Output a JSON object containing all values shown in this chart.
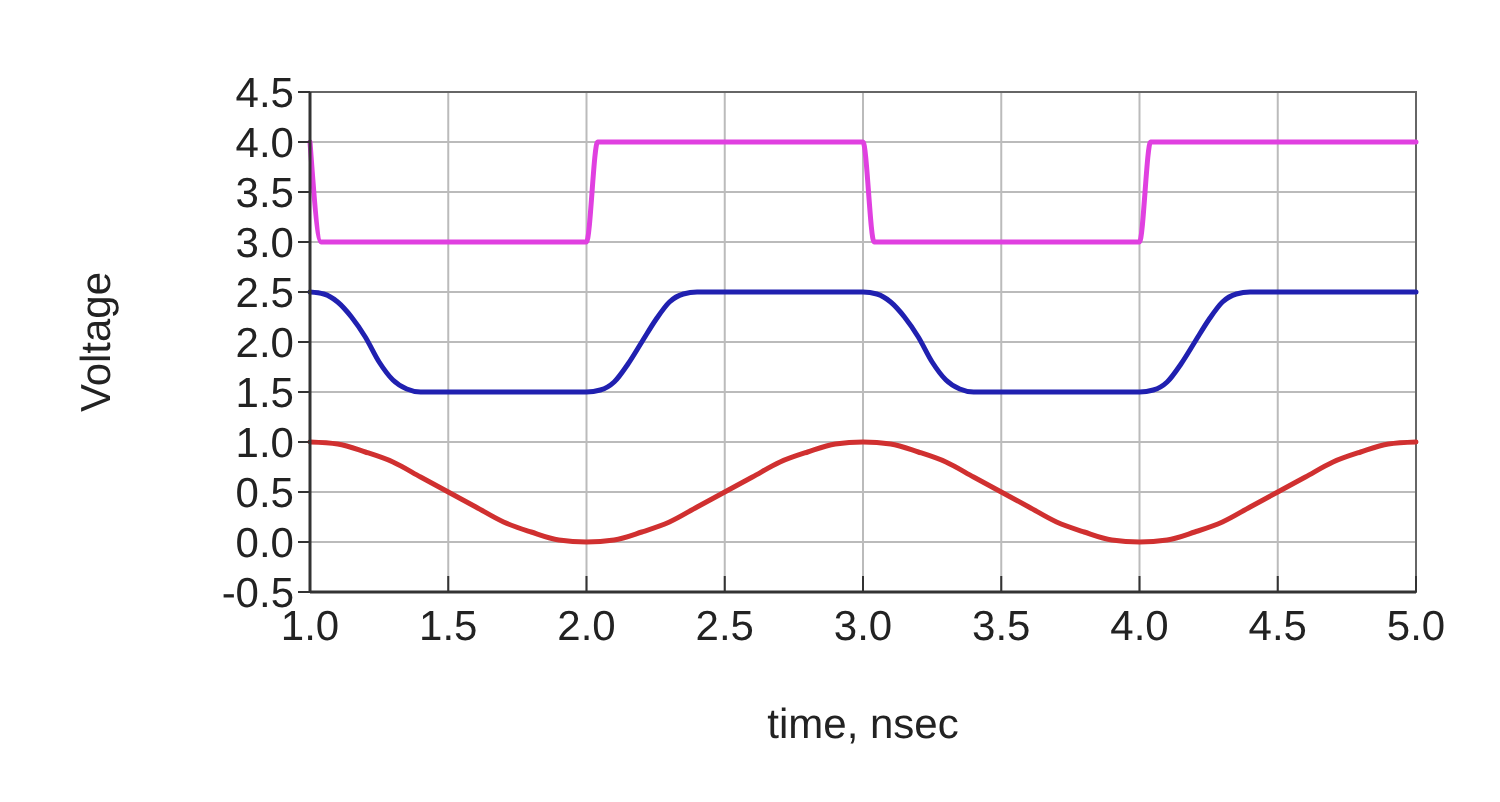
{
  "chart_data": {
    "type": "line",
    "xlabel": "time, nsec",
    "ylabel": "Voltage",
    "xlim": [
      1.0,
      5.0
    ],
    "ylim": [
      -0.5,
      4.5
    ],
    "xticks": [
      {
        "value": 1,
        "label": "1.0"
      },
      {
        "value": 1.5,
        "label": "1.5"
      },
      {
        "value": 2,
        "label": "2.0"
      },
      {
        "value": 2.5,
        "label": "2.5"
      },
      {
        "value": 3,
        "label": "3.0"
      },
      {
        "value": 3.5,
        "label": "3.5"
      },
      {
        "value": 4,
        "label": "4.0"
      },
      {
        "value": 4.5,
        "label": "4.5"
      },
      {
        "value": 5,
        "label": "5.0"
      }
    ],
    "yticks": [
      {
        "value": -0.5,
        "label": "-0.5"
      },
      {
        "value": 0,
        "label": "0.0"
      },
      {
        "value": 0.5,
        "label": "0.5"
      },
      {
        "value": 1,
        "label": "1.0"
      },
      {
        "value": 1.5,
        "label": "1.5"
      },
      {
        "value": 2,
        "label": "2.0"
      },
      {
        "value": 2.5,
        "label": "2.5"
      },
      {
        "value": 3,
        "label": "3.0"
      },
      {
        "value": 3.5,
        "label": "3.5"
      },
      {
        "value": 4,
        "label": "4.0"
      },
      {
        "value": 4.5,
        "label": "4.5"
      }
    ],
    "grid": true,
    "marker": "none",
    "line_style": "solid",
    "series": [
      {
        "color": "#e040e0",
        "x": [
          1.0,
          1.04,
          2.0,
          2.04,
          3.0,
          3.04,
          4.0,
          4.04,
          5.0
        ],
        "values": [
          4,
          3,
          3,
          4,
          4,
          3,
          3,
          4,
          4
        ]
      },
      {
        "color": "#2020b0",
        "x": [
          1.0,
          1.05,
          1.1,
          1.15,
          1.2,
          1.25,
          1.3,
          1.35,
          1.4,
          2.0,
          2.05,
          2.1,
          2.15,
          2.2,
          2.25,
          2.3,
          2.35,
          2.4,
          3.0,
          3.05,
          3.1,
          3.15,
          3.2,
          3.25,
          3.3,
          3.35,
          3.4,
          4.0,
          4.05,
          4.1,
          4.15,
          4.2,
          4.25,
          4.3,
          4.35,
          4.4,
          5.0
        ],
        "values": [
          2.5,
          2.48,
          2.4,
          2.25,
          2.05,
          1.8,
          1.62,
          1.53,
          1.5,
          1.5,
          1.52,
          1.6,
          1.78,
          2.0,
          2.22,
          2.4,
          2.48,
          2.5,
          2.5,
          2.48,
          2.4,
          2.25,
          2.05,
          1.8,
          1.62,
          1.53,
          1.5,
          1.5,
          1.52,
          1.6,
          1.78,
          2.0,
          2.22,
          2.4,
          2.48,
          2.5,
          2.5
        ]
      },
      {
        "color": "#d03030",
        "x": [
          1.0,
          1.1,
          1.2,
          1.3,
          1.4,
          1.5,
          1.6,
          1.7,
          1.8,
          1.9,
          2.0,
          2.1,
          2.2,
          2.3,
          2.4,
          2.5,
          2.6,
          2.7,
          2.8,
          2.9,
          3.0,
          3.1,
          3.2,
          3.3,
          3.4,
          3.5,
          3.6,
          3.7,
          3.8,
          3.9,
          4.0,
          4.1,
          4.2,
          4.3,
          4.4,
          4.5,
          4.6,
          4.7,
          4.8,
          4.9,
          5.0
        ],
        "values": [
          1,
          0.98,
          0.9,
          0.8,
          0.65,
          0.5,
          0.35,
          0.2,
          0.1,
          0.02,
          0,
          0.02,
          0.1,
          0.2,
          0.35,
          0.5,
          0.65,
          0.8,
          0.9,
          0.98,
          1,
          0.98,
          0.9,
          0.8,
          0.65,
          0.5,
          0.35,
          0.2,
          0.1,
          0.02,
          0,
          0.02,
          0.1,
          0.2,
          0.35,
          0.5,
          0.65,
          0.8,
          0.9,
          0.98,
          1
        ]
      }
    ]
  }
}
